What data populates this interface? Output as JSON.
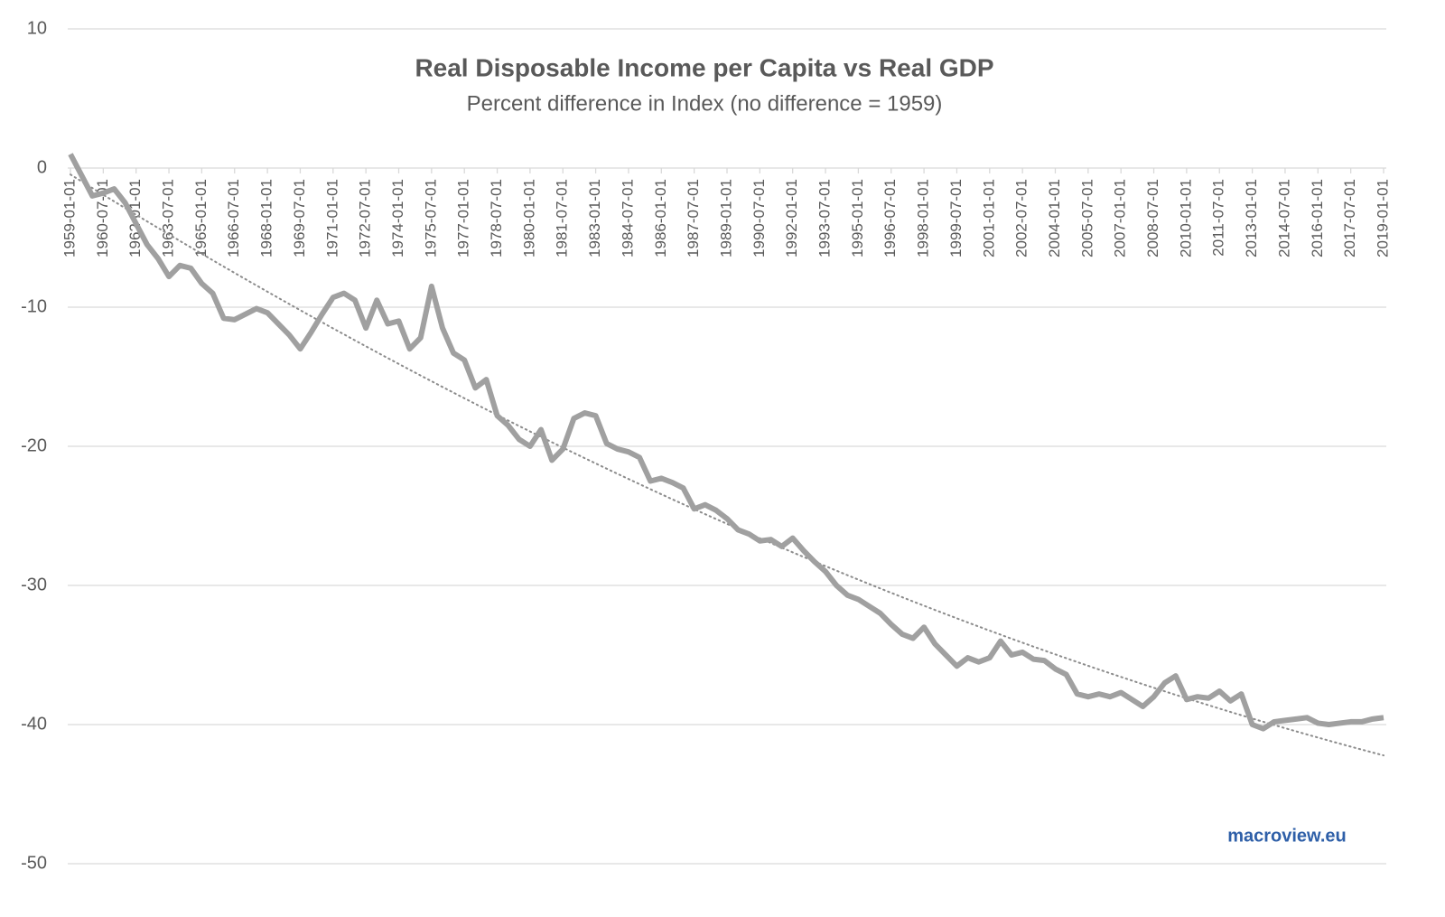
{
  "chart_data": {
    "type": "line",
    "title": "Real Disposable Income per Capita vs Real GDP",
    "subtitle": "Percent difference in Index (no difference = 1959)",
    "source": "macroview.eu",
    "categories": [
      "1959-01-01",
      null,
      null,
      "1960-07-01",
      null,
      null,
      "1962-01-01",
      null,
      null,
      "1963-07-01",
      null,
      null,
      "1965-01-01",
      null,
      null,
      "1966-07-01",
      null,
      null,
      "1968-01-01",
      null,
      null,
      "1969-07-01",
      null,
      null,
      "1971-01-01",
      null,
      null,
      "1972-07-01",
      null,
      null,
      "1974-01-01",
      null,
      null,
      "1975-07-01",
      null,
      null,
      "1977-01-01",
      null,
      null,
      "1978-07-01",
      null,
      null,
      "1980-01-01",
      null,
      null,
      "1981-07-01",
      null,
      null,
      "1983-01-01",
      null,
      null,
      "1984-07-01",
      null,
      null,
      "1986-01-01",
      null,
      null,
      "1987-07-01",
      null,
      null,
      "1989-01-01",
      null,
      null,
      "1990-07-01",
      null,
      null,
      "1992-01-01",
      null,
      null,
      "1993-07-01",
      null,
      null,
      "1995-01-01",
      null,
      null,
      "1996-07-01",
      null,
      null,
      "1998-01-01",
      null,
      null,
      "1999-07-01",
      null,
      null,
      "2001-01-01",
      null,
      null,
      "2002-07-01",
      null,
      null,
      "2004-01-01",
      null,
      null,
      "2005-07-01",
      null,
      null,
      "2007-01-01",
      null,
      null,
      "2008-07-01",
      null,
      null,
      "2010-01-01",
      null,
      null,
      "2011-07-01",
      null,
      null,
      "2013-01-01",
      null,
      null,
      "2014-07-01",
      null,
      null,
      "2016-01-01",
      null,
      null,
      "2017-07-01",
      null,
      null,
      "2019-01-01"
    ],
    "series": [
      {
        "color": "#a0a0a0",
        "values": [
          1.0,
          -0.5,
          -2.0,
          -1.8,
          -1.5,
          -2.5,
          -4.0,
          -5.5,
          -6.5,
          -7.8,
          -7.0,
          -7.2,
          -8.3,
          -9.0,
          -10.8,
          -10.9,
          -10.5,
          -10.1,
          -10.4,
          -11.2,
          -12.0,
          -13.0,
          -11.8,
          -10.5,
          -9.3,
          -9.0,
          -9.5,
          -11.5,
          -9.5,
          -11.2,
          -11.0,
          -13.0,
          -12.2,
          -8.5,
          -11.5,
          -13.3,
          -13.8,
          -15.8,
          -15.2,
          -17.8,
          -18.5,
          -19.5,
          -20.0,
          -18.8,
          -21.0,
          -20.2,
          -18.0,
          -17.6,
          -17.8,
          -19.8,
          -20.2,
          -20.4,
          -20.8,
          -22.5,
          -22.3,
          -22.6,
          -23.0,
          -24.5,
          -24.2,
          -24.6,
          -25.2,
          -26.0,
          -26.3,
          -26.8,
          -26.7,
          -27.2,
          -26.6,
          -27.5,
          -28.3,
          -29.0,
          -30.0,
          -30.7,
          -31.0,
          -31.5,
          -32.0,
          -32.8,
          -33.5,
          -33.8,
          -33.0,
          -34.2,
          -35.0,
          -35.8,
          -35.2,
          -35.5,
          -35.2,
          -34.0,
          -35.0,
          -34.8,
          -35.3,
          -35.4,
          -36.0,
          -36.4,
          -37.8,
          -38.0,
          -37.8,
          -38.0,
          -37.7,
          -38.2,
          -38.7,
          -38.0,
          -37.0,
          -36.5,
          -38.2,
          -38.0,
          -38.1,
          -37.6,
          -38.3,
          -37.8,
          -40.0,
          -40.3,
          -39.8,
          -39.7,
          -39.6,
          -39.5,
          -39.9,
          -40.0,
          -39.9,
          -39.8,
          -39.8,
          -39.6,
          -39.5
        ]
      }
    ],
    "trendline": "polynomial",
    "ylim": [
      -50,
      10
    ],
    "yticks": [
      10,
      0,
      -10,
      -20,
      -30,
      -40,
      -50
    ],
    "grid": true
  }
}
